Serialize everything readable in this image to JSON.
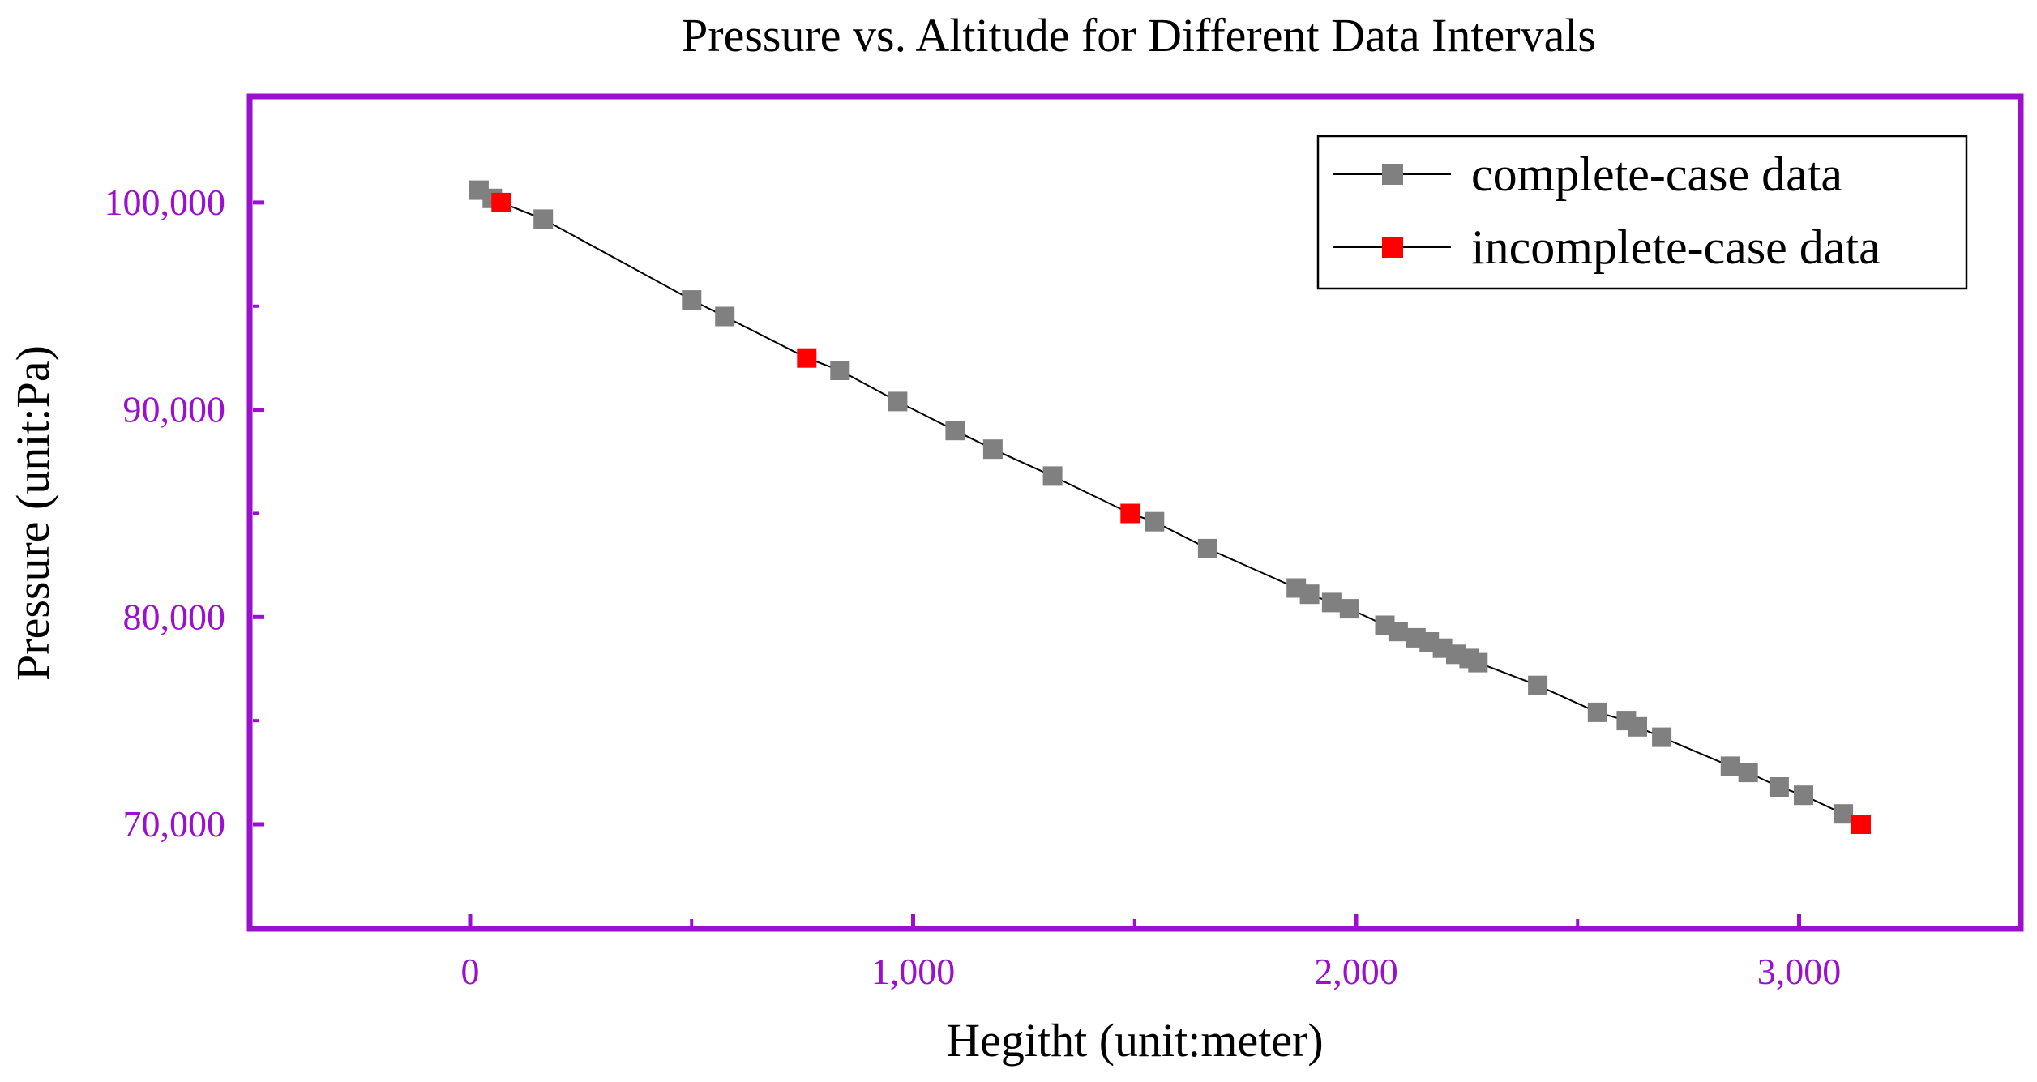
{
  "colors": {
    "frame": "#9b10cf",
    "tick_label": "#9b10cf",
    "complete_marker": "#808080",
    "incomplete_marker": "#ff0000",
    "line": "#000000",
    "text": "#000000"
  },
  "chart_data": {
    "type": "scatter",
    "title": "Pressure vs. Altitude for Different Data Intervals",
    "xlabel": "Hegitht (unit:meter)",
    "ylabel": "Pressure (unit:Pa)",
    "xlim": [
      -500,
      3500
    ],
    "ylim": [
      65000,
      105000
    ],
    "x_ticks": [
      0,
      1000,
      2000,
      3000
    ],
    "x_tick_labels": [
      "0",
      "1,000",
      "2,000",
      "3,000"
    ],
    "y_ticks": [
      70000,
      80000,
      90000,
      100000
    ],
    "y_tick_labels": [
      "70,000",
      "80,000",
      "90,000",
      "100,000"
    ],
    "grid": false,
    "legend_position": "top-right",
    "series": [
      {
        "name": "complete-case data",
        "marker": "square",
        "color": "#808080",
        "x": [
          20,
          50,
          165,
          500,
          575,
          835,
          965,
          1095,
          1180,
          1315,
          1545,
          1665,
          1865,
          1895,
          1945,
          1985,
          2065,
          2095,
          2135,
          2165,
          2195,
          2225,
          2255,
          2275,
          2410,
          2545,
          2610,
          2635,
          2690,
          2845,
          2885,
          2955,
          3010,
          3100
        ],
        "y": [
          100600,
          100200,
          99200,
          95300,
          94500,
          91900,
          90400,
          89000,
          88100,
          86800,
          84600,
          83300,
          81400,
          81100,
          80700,
          80400,
          79600,
          79300,
          79000,
          78800,
          78500,
          78200,
          78000,
          77800,
          76700,
          75400,
          75000,
          74700,
          74200,
          72800,
          72500,
          71800,
          71400,
          70500
        ]
      },
      {
        "name": "incomplete-case data",
        "marker": "square",
        "color": "#ff0000",
        "x": [
          70,
          760,
          1490,
          3140
        ],
        "y": [
          100000,
          92500,
          85000,
          70000
        ]
      }
    ]
  }
}
